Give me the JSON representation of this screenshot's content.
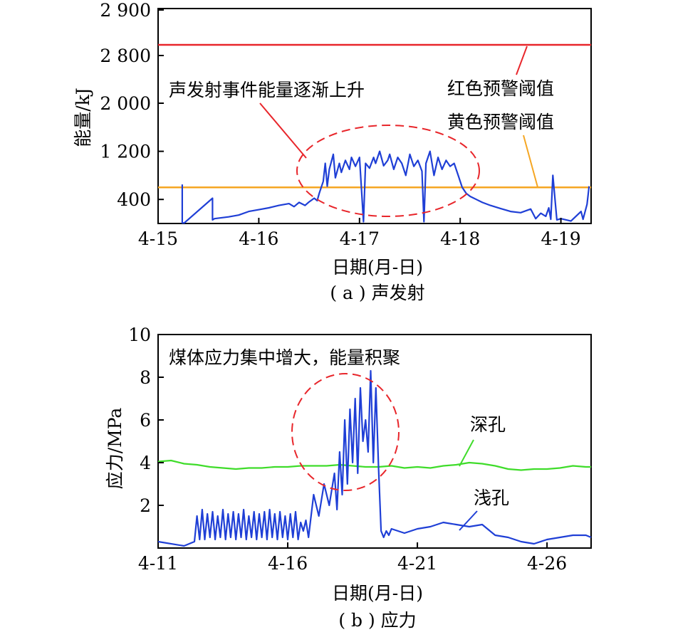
{
  "chart_data": [
    {
      "type": "line",
      "caption": "( a ) 声发射",
      "xlabel": "日期(月-日)",
      "ylabel": "能量/kJ",
      "x_ticks": [
        "4-15",
        "4-16",
        "4-17",
        "4-18",
        "4-19"
      ],
      "y_ticks": [
        "400",
        "1 200",
        "2 000",
        "2 800",
        "2 900"
      ],
      "xlim": [
        0,
        4.3
      ],
      "y_scale": "broken axis (0–2 000 linear, break 2 000→2 800)",
      "grid": false,
      "legend": "none",
      "annotations": {
        "event": "声发射事件能量逐渐上升",
        "red_line": "红色预警阈值",
        "yellow_line": "黄色预警阈值"
      },
      "thresholds": [
        {
          "label": "红色预警阈值",
          "value": 2830,
          "color": "#e8262b"
        },
        {
          "label": "黄色预警阈值",
          "value": 600,
          "color": "#f5a623"
        }
      ],
      "series": [
        {
          "color": "#1f3fd6",
          "x": [
            0.24,
            0.24,
            0.26,
            0.54,
            0.54,
            0.56,
            0.7,
            0.8,
            0.9,
            1.0,
            1.1,
            1.2,
            1.3,
            1.35,
            1.4,
            1.46,
            1.5,
            1.55,
            1.58,
            1.6,
            1.64,
            1.66,
            1.68,
            1.7,
            1.74,
            1.76,
            1.8,
            1.82,
            1.86,
            1.9,
            1.92,
            1.96,
            2.0,
            2.04,
            2.06,
            2.1,
            2.14,
            2.16,
            2.2,
            2.24,
            2.28,
            2.3,
            2.34,
            2.38,
            2.42,
            2.46,
            2.5,
            2.54,
            2.58,
            2.62,
            2.64,
            2.66,
            2.7,
            2.74,
            2.78,
            2.82,
            2.86,
            2.9,
            2.94,
            2.98,
            3.02,
            3.06,
            3.1,
            3.16,
            3.22,
            3.3,
            3.4,
            3.5,
            3.6,
            3.7,
            3.75,
            3.8,
            3.85,
            3.88,
            3.9,
            3.92,
            3.96,
            4.0,
            4.1,
            4.2,
            4.22,
            4.26,
            4.28
          ],
          "y": [
            650,
            10,
            10,
            420,
            60,
            80,
            110,
            140,
            200,
            230,
            260,
            300,
            330,
            280,
            350,
            300,
            360,
            420,
            380,
            500,
            700,
            1000,
            620,
            900,
            1150,
            760,
            1000,
            850,
            1050,
            900,
            1100,
            950,
            1100,
            30,
            1000,
            920,
            1100,
            1000,
            1200,
            960,
            1050,
            1150,
            900,
            1100,
            1000,
            800,
            1150,
            950,
            1050,
            870,
            30,
            1000,
            1200,
            800,
            1100,
            900,
            1050,
            950,
            1000,
            800,
            600,
            500,
            450,
            400,
            350,
            300,
            250,
            200,
            180,
            240,
            80,
            170,
            120,
            260,
            70,
            800,
            60,
            80,
            40,
            200,
            70,
            320,
            620
          ]
        }
      ]
    },
    {
      "type": "line",
      "caption": "( b ) 应力",
      "xlabel": "日期(月-日)",
      "ylabel": "应力/MPa",
      "x_ticks": [
        "4-11",
        "4-16",
        "4-21",
        "4-26"
      ],
      "y_ticks": [
        "2",
        "4",
        "6",
        "8",
        "10"
      ],
      "xlim": [
        0,
        16.7
      ],
      "ylim": [
        0,
        10
      ],
      "grid": false,
      "legend": "none",
      "annotations": {
        "event": "煤体应力集中增大，能量积聚"
      },
      "series": [
        {
          "name": "深孔",
          "color": "#3fdc2a",
          "x": [
            0,
            0.5,
            1.0,
            1.5,
            2.0,
            2.5,
            3.0,
            3.5,
            4.0,
            4.5,
            5.0,
            5.5,
            6.0,
            6.5,
            7.0,
            7.5,
            8.0,
            8.5,
            9.0,
            9.5,
            10.0,
            10.5,
            11.0,
            11.5,
            12.0,
            12.5,
            13.0,
            13.5,
            14.0,
            14.5,
            15.0,
            15.5,
            16.0,
            16.5,
            16.7
          ],
          "y": [
            4.05,
            4.1,
            3.95,
            3.9,
            3.8,
            3.75,
            3.7,
            3.75,
            3.75,
            3.8,
            3.8,
            3.85,
            3.85,
            3.85,
            3.9,
            3.85,
            3.8,
            3.8,
            3.85,
            3.75,
            3.8,
            3.75,
            3.85,
            3.9,
            4.0,
            3.95,
            3.85,
            3.7,
            3.65,
            3.7,
            3.7,
            3.75,
            3.85,
            3.8,
            3.8
          ]
        },
        {
          "name": "浅孔",
          "color": "#1f3fd6",
          "x": [
            0,
            1.0,
            1.4,
            1.5,
            1.6,
            1.7,
            1.8,
            1.9,
            2.0,
            2.1,
            2.2,
            2.3,
            2.4,
            2.5,
            2.6,
            2.7,
            2.8,
            2.9,
            3.0,
            3.1,
            3.2,
            3.3,
            3.4,
            3.5,
            3.6,
            3.7,
            3.8,
            3.9,
            4.0,
            4.1,
            4.2,
            4.3,
            4.4,
            4.5,
            4.6,
            4.7,
            4.8,
            4.9,
            5.0,
            5.1,
            5.2,
            5.3,
            5.4,
            5.5,
            5.6,
            5.7,
            5.8,
            5.9,
            6.0,
            6.2,
            6.4,
            6.6,
            6.8,
            6.9,
            7.0,
            7.1,
            7.2,
            7.3,
            7.4,
            7.5,
            7.6,
            7.7,
            7.8,
            7.9,
            8.0,
            8.1,
            8.2,
            8.3,
            8.4,
            8.5,
            8.6,
            8.7,
            8.8,
            8.9,
            9.0,
            9.5,
            10.0,
            10.5,
            11.0,
            11.5,
            12.0,
            12.5,
            13.0,
            13.5,
            14.0,
            14.5,
            15.0,
            15.5,
            16.0,
            16.5,
            16.7
          ],
          "y": [
            0.3,
            0.1,
            0.3,
            1.5,
            0.4,
            1.8,
            0.4,
            1.6,
            0.5,
            1.7,
            0.4,
            1.5,
            0.5,
            1.8,
            0.4,
            1.6,
            0.5,
            1.7,
            0.4,
            1.6,
            0.5,
            1.8,
            0.4,
            1.5,
            0.5,
            1.7,
            0.4,
            1.6,
            0.5,
            1.7,
            0.4,
            1.8,
            0.5,
            1.6,
            0.4,
            1.7,
            0.5,
            1.5,
            0.4,
            1.6,
            0.5,
            1.7,
            0.4,
            1.2,
            0.8,
            1.3,
            0.5,
            1.5,
            2.5,
            1.5,
            3.0,
            2.0,
            3.5,
            1.8,
            4.5,
            2.5,
            6.0,
            3.0,
            6.5,
            4.0,
            7.0,
            3.5,
            7.5,
            5.0,
            6.0,
            4.5,
            8.3,
            4.0,
            7.5,
            3.8,
            0.8,
            0.5,
            0.8,
            0.6,
            0.9,
            0.7,
            0.9,
            1.0,
            1.2,
            1.1,
            1.0,
            1.1,
            0.6,
            0.5,
            0.3,
            0.2,
            0.4,
            0.5,
            0.6,
            0.6,
            0.5
          ]
        }
      ]
    }
  ]
}
